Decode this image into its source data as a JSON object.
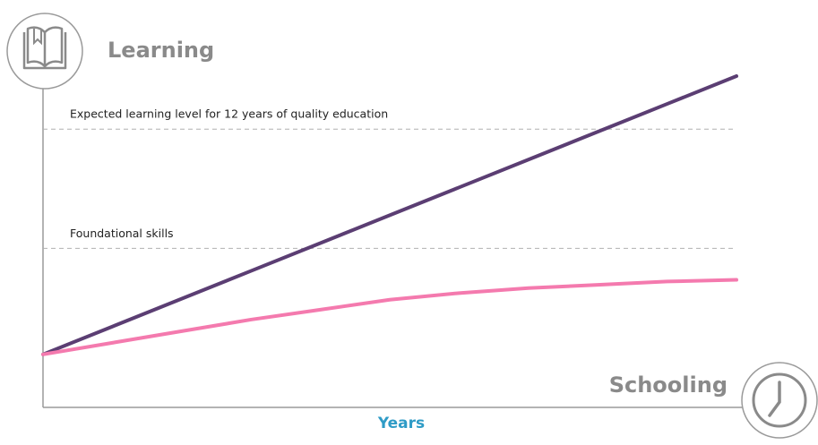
{
  "chart_data": {
    "type": "line",
    "y_label": "Learning",
    "x_label": "Schooling",
    "x_unit": "Years",
    "x": [
      0,
      1,
      2,
      3,
      4,
      5,
      6,
      7,
      8,
      9,
      10
    ],
    "series": [
      {
        "color": "#5b3e73",
        "values": [
          16,
          24.4,
          32.8,
          41.2,
          49.6,
          58,
          66.4,
          74.8,
          83.2,
          91.6,
          100
        ]
      },
      {
        "color": "#f47aae",
        "values": [
          16,
          19.5,
          23,
          26.5,
          29.5,
          32.5,
          34.5,
          36,
          37,
          38,
          38.5
        ]
      }
    ],
    "reference_lines": [
      {
        "label": "Expected learning level for 12 years of quality education",
        "y": 84
      },
      {
        "label": "Foundational skills",
        "y": 48
      }
    ],
    "xlim": [
      0,
      10
    ],
    "ylim": [
      0,
      100
    ]
  }
}
